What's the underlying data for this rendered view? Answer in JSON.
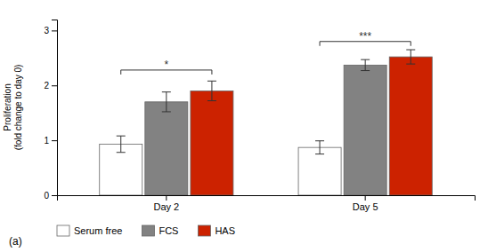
{
  "chart_data": {
    "type": "bar",
    "categories": [
      "Day 2",
      "Day 5"
    ],
    "series": [
      {
        "name": "Serum free",
        "color": "#ffffff",
        "values": [
          0.93,
          0.87
        ],
        "errors": [
          0.15,
          0.12
        ]
      },
      {
        "name": "FCS",
        "color": "#828282",
        "values": [
          1.7,
          2.37
        ],
        "errors": [
          0.18,
          0.1
        ]
      },
      {
        "name": "HAS",
        "color": "#cc2200",
        "values": [
          1.9,
          2.52
        ],
        "errors": [
          0.18,
          0.13
        ]
      }
    ],
    "ylabel": "Proliferation\n(fold change to day 0)",
    "ylim": [
      0,
      3.2
    ],
    "yticks": [
      0,
      1,
      2,
      3
    ],
    "legend": "bottom",
    "annotations": [
      {
        "text": "*",
        "category": "Day 2",
        "between": [
          "Serum free",
          "HAS"
        ],
        "y": 2.28
      },
      {
        "text": "***",
        "category": "Day 5",
        "between": [
          "Serum free",
          "HAS"
        ],
        "y": 2.8
      },
      {
        "text": "(a)"
      }
    ]
  }
}
